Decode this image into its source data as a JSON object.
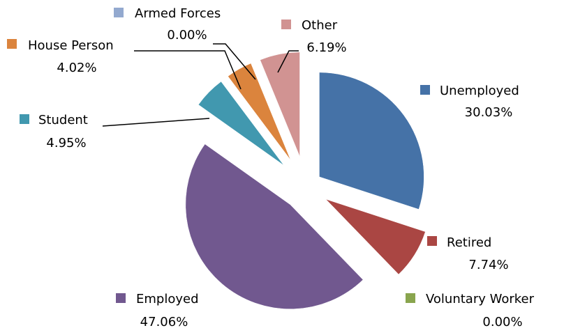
{
  "chart_data": {
    "type": "pie",
    "categories": [
      "Unemployed",
      "Retired",
      "Voluntary Worker",
      "Employed",
      "Student",
      "House Person",
      "Armed Forces",
      "Other"
    ],
    "values": [
      30.03,
      7.74,
      0.0,
      47.06,
      4.95,
      4.02,
      0.0,
      6.19
    ],
    "value_labels": [
      "30.03%",
      "7.74%",
      "0.00%",
      "47.06%",
      "4.95%",
      "4.02%",
      "0.00%",
      "6.19%"
    ],
    "colors": [
      "#4572a7",
      "#aa4643",
      "#89a54e",
      "#71588f",
      "#4198af",
      "#db843d",
      "#93a9cf",
      "#d19392"
    ]
  }
}
